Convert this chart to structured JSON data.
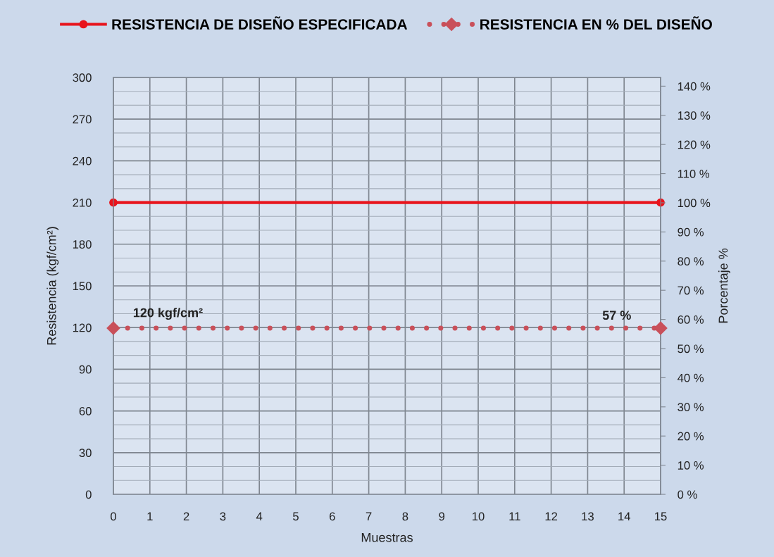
{
  "chart_data": {
    "type": "line",
    "xlabel": "Muestras",
    "ylabel": "Resistencia (kgf/cm²)",
    "y2label": "Porcentaje %",
    "x": [
      0,
      15
    ],
    "series": [
      {
        "name": "RESISTENCIA DE DISEÑO ESPECIFICADA",
        "color": "#e8141c",
        "values": [
          210,
          210
        ],
        "marker": "circle",
        "line_style": "solid"
      },
      {
        "name": "RESISTENCIA EN % DEL DISEÑO",
        "color": "#c9505a",
        "values": [
          57,
          57
        ],
        "axis": "y2",
        "marker": "diamond",
        "line_style": "dotted",
        "value_labels": [
          null,
          "57 %"
        ]
      }
    ],
    "annotations": [
      {
        "text": "120 kgf/cm²",
        "x": 0,
        "y": 120
      }
    ],
    "xlim": [
      0,
      15
    ],
    "xticks": [
      0,
      1,
      2,
      3,
      4,
      5,
      6,
      7,
      8,
      9,
      10,
      11,
      12,
      13,
      14,
      15
    ],
    "ylim": [
      0,
      300
    ],
    "yticks": [
      0,
      30,
      60,
      90,
      120,
      150,
      180,
      210,
      240,
      270,
      300
    ],
    "y2lim": [
      0,
      143
    ],
    "y2ticks": [
      {
        "value": 0,
        "label": "0 %"
      },
      {
        "value": 10,
        "label": "10 %"
      },
      {
        "value": 20,
        "label": "20 %"
      },
      {
        "value": 30,
        "label": "30 %"
      },
      {
        "value": 40,
        "label": "40 %"
      },
      {
        "value": 50,
        "label": "50 %"
      },
      {
        "value": 60,
        "label": "60 %"
      },
      {
        "value": 70,
        "label": "70 %"
      },
      {
        "value": 80,
        "label": "80 %"
      },
      {
        "value": 90,
        "label": "90 %"
      },
      {
        "value": 100,
        "label": "100 %"
      },
      {
        "value": 110,
        "label": "110 %"
      },
      {
        "value": 120,
        "label": "120 %"
      },
      {
        "value": 130,
        "label": "130 %"
      },
      {
        "value": 140,
        "label": "140 %"
      }
    ],
    "grid": true,
    "legend": "top"
  }
}
